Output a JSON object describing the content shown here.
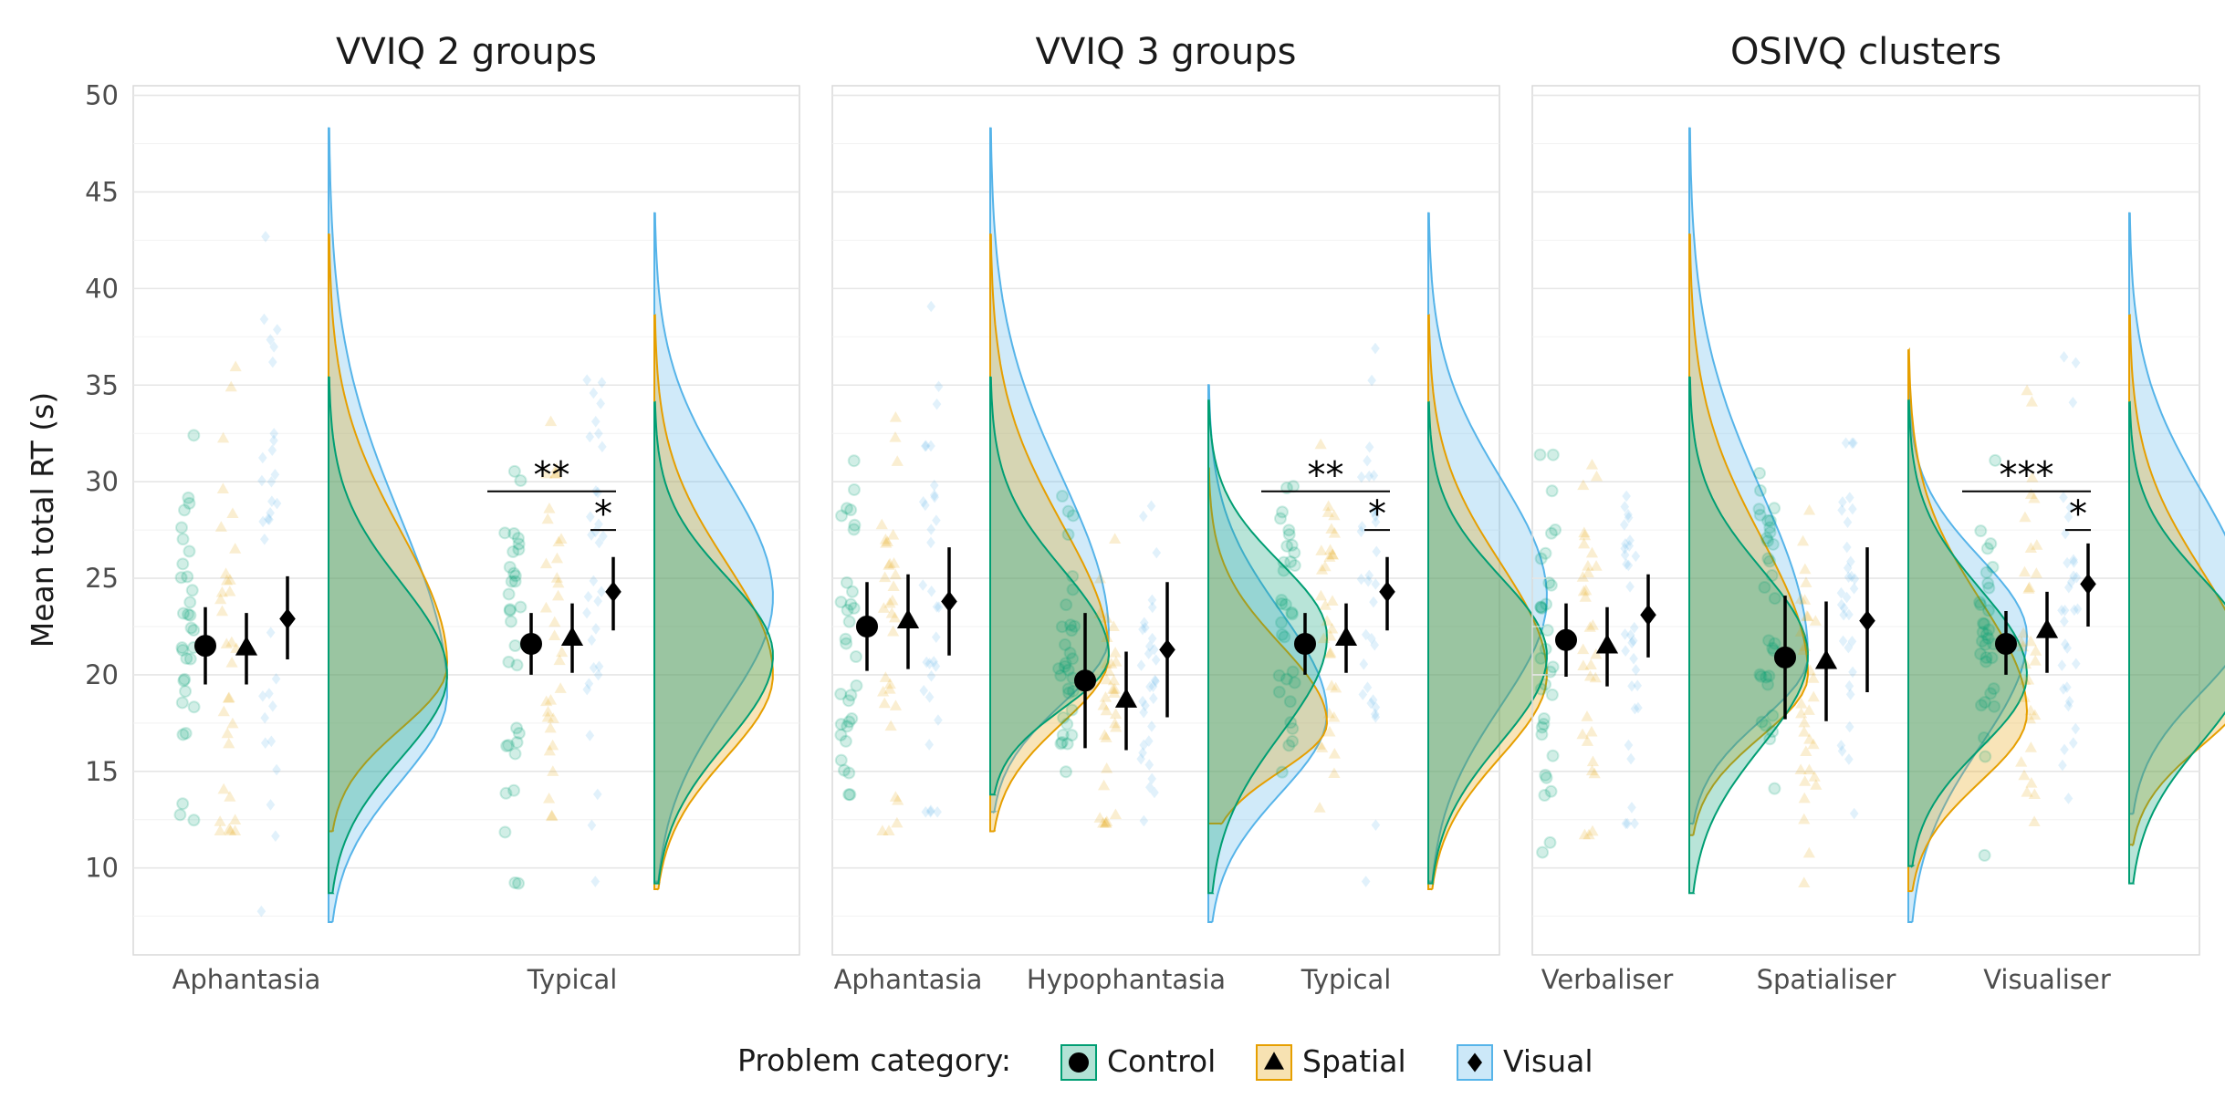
{
  "chart_data": {
    "type": "raincloud",
    "ylabel": "Mean total RT (s)",
    "yticks": [
      10,
      15,
      20,
      25,
      30,
      35,
      40,
      45,
      50
    ],
    "ylim": [
      5.5,
      50.5
    ],
    "grid": true,
    "legend": {
      "position": "bottom",
      "title": "Problem category:",
      "entries": [
        {
          "label": "Control",
          "color": "#009E73",
          "marker": "circle"
        },
        {
          "label": "Spatial",
          "color": "#E69F00",
          "marker": "triangle"
        },
        {
          "label": "Visual",
          "color": "#56B4E9",
          "marker": "diamond"
        }
      ]
    },
    "panels": [
      {
        "title": "VVIQ 2 groups",
        "groups": [
          {
            "label": "Aphantasia",
            "means": [
              21.5,
              21.4,
              22.9
            ],
            "ci": [
              [
                19.5,
                23.5
              ],
              [
                19.5,
                23.2
              ],
              [
                20.8,
                25.1
              ]
            ],
            "ranges": [
              [
                8.7,
                35.4
              ],
              [
                11.9,
                42.8
              ],
              [
                7.2,
                48.3
              ]
            ],
            "modes": [
              20.0,
              20.5,
              19.0
            ]
          },
          {
            "label": "Typical",
            "means": [
              21.6,
              21.9,
              24.3
            ],
            "ci": [
              [
                20.0,
                23.2
              ],
              [
                20.1,
                23.7
              ],
              [
                22.3,
                26.1
              ]
            ],
            "ranges": [
              [
                9.2,
                34.1
              ],
              [
                8.9,
                38.6
              ],
              [
                9.3,
                43.9
              ]
            ],
            "modes": [
              21.0,
              20.0,
              24.0
            ],
            "annotations": [
              {
                "text": "**",
                "from": "Control",
                "to": "Visual"
              },
              {
                "text": "*",
                "from": "Spatial",
                "to": "Visual"
              }
            ]
          }
        ]
      },
      {
        "title": "VVIQ 3 groups",
        "groups": [
          {
            "label": "Aphantasia",
            "means": [
              22.5,
              22.8,
              23.8
            ],
            "ci": [
              [
                20.2,
                24.8
              ],
              [
                20.3,
                25.2
              ],
              [
                21.0,
                26.6
              ]
            ],
            "ranges": [
              [
                13.8,
                35.4
              ],
              [
                11.9,
                42.8
              ],
              [
                12.9,
                48.3
              ]
            ],
            "modes": [
              21.0,
              21.0,
              22.0
            ]
          },
          {
            "label": "Hypophantasia",
            "means": [
              19.7,
              18.7,
              21.3
            ],
            "ci": [
              [
                16.2,
                23.2
              ],
              [
                16.1,
                21.2
              ],
              [
                17.8,
                24.8
              ]
            ],
            "ranges": [
              [
                8.7,
                34.2
              ],
              [
                12.3,
                30.6
              ],
              [
                7.2,
                35.0
              ]
            ],
            "modes": [
              22.0,
              17.5,
              18.0
            ]
          },
          {
            "label": "Typical",
            "means": [
              21.6,
              21.9,
              24.3
            ],
            "ci": [
              [
                20.0,
                23.2
              ],
              [
                20.1,
                23.7
              ],
              [
                22.3,
                26.1
              ]
            ],
            "ranges": [
              [
                9.2,
                34.1
              ],
              [
                8.9,
                38.6
              ],
              [
                9.3,
                43.9
              ]
            ],
            "modes": [
              21.0,
              20.0,
              24.0
            ],
            "annotations": [
              {
                "text": "**",
                "from": "Control",
                "to": "Visual"
              },
              {
                "text": "*",
                "from": "Spatial",
                "to": "Visual"
              }
            ]
          }
        ]
      },
      {
        "title": "OSIVQ clusters",
        "groups": [
          {
            "label": "Verbaliser",
            "means": [
              21.8,
              21.5,
              23.1
            ],
            "ci": [
              [
                19.9,
                23.7
              ],
              [
                19.4,
                23.5
              ],
              [
                20.9,
                25.2
              ]
            ],
            "ranges": [
              [
                8.7,
                35.4
              ],
              [
                11.7,
                42.8
              ],
              [
                12.3,
                48.3
              ]
            ],
            "modes": [
              21.0,
              20.0,
              21.0
            ]
          },
          {
            "label": "Spatialiser",
            "means": [
              20.9,
              20.7,
              22.8
            ],
            "ci": [
              [
                17.7,
                24.1
              ],
              [
                17.6,
                23.8
              ],
              [
                19.1,
                26.6
              ]
            ],
            "ranges": [
              [
                10.1,
                34.2
              ],
              [
                8.8,
                36.8
              ],
              [
                7.2,
                35.0
              ]
            ],
            "modes": [
              20.0,
              18.0,
              22.0
            ]
          },
          {
            "label": "Visualiser",
            "means": [
              21.6,
              22.3,
              24.7
            ],
            "ci": [
              [
                20.0,
                23.3
              ],
              [
                20.1,
                24.3
              ],
              [
                22.5,
                26.8
              ]
            ],
            "ranges": [
              [
                9.2,
                34.1
              ],
              [
                11.2,
                38.6
              ],
              [
                12.8,
                43.9
              ]
            ],
            "modes": [
              21.0,
              19.5,
              23.0
            ],
            "annotations": [
              {
                "text": "***",
                "from": "Control",
                "to": "Visual"
              },
              {
                "text": "*",
                "from": "Spatial",
                "to": "Visual"
              }
            ]
          }
        ]
      }
    ]
  }
}
